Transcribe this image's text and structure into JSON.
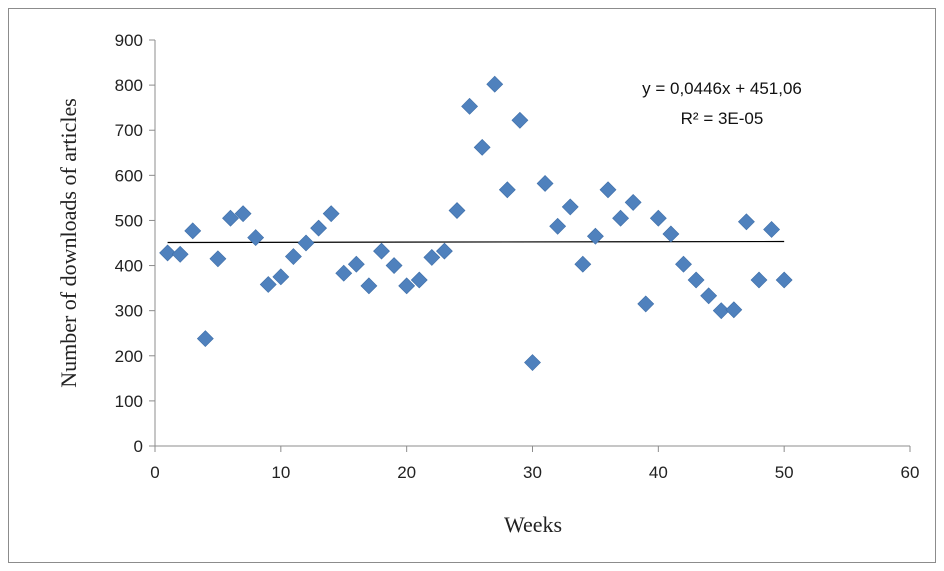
{
  "chart_data": {
    "type": "scatter",
    "xlabel": "Weeks",
    "ylabel": "Number of downloads of articles",
    "xlim": [
      0,
      60
    ],
    "ylim": [
      0,
      900
    ],
    "x_ticks": [
      0,
      10,
      20,
      30,
      40,
      50,
      60
    ],
    "y_ticks": [
      0,
      100,
      200,
      300,
      400,
      500,
      600,
      700,
      800,
      900
    ],
    "x_tick_labels": [
      "0",
      "10",
      "20",
      "30",
      "40",
      "50",
      "60"
    ],
    "y_tick_labels": [
      "0",
      "100",
      "200",
      "300",
      "400",
      "500",
      "600",
      "700",
      "800",
      "900"
    ],
    "grid": false,
    "legend": "none",
    "marker": "diamond",
    "marker_color": "#4f81bd",
    "series": [
      {
        "x": [
          1,
          2,
          3,
          4,
          5,
          6,
          7,
          8,
          9,
          10,
          11,
          12,
          13,
          14,
          15,
          16,
          17,
          18,
          19,
          20,
          21,
          22,
          23,
          24,
          25,
          26,
          27,
          28,
          29,
          30,
          31,
          32,
          33,
          34,
          35,
          36,
          37,
          38,
          39,
          40,
          41,
          42,
          43,
          44,
          45,
          46,
          47,
          48,
          49,
          50
        ],
        "y": [
          428,
          425,
          477,
          238,
          415,
          505,
          515,
          462,
          358,
          375,
          420,
          450,
          483,
          515,
          383,
          403,
          355,
          432,
          400,
          355,
          368,
          418,
          432,
          522,
          753,
          662,
          802,
          568,
          722,
          185,
          582,
          487,
          530,
          403,
          465,
          568,
          505,
          540,
          315,
          505,
          470,
          403,
          368,
          333,
          300,
          302,
          497,
          368,
          480,
          368
        ]
      }
    ],
    "trendline": {
      "type": "linear",
      "slope": 0.0446,
      "intercept": 451.06,
      "x_range": [
        1,
        50
      ],
      "color": "#000000"
    },
    "annotations": [
      "y = 0,0446x + 451,06",
      "R² = 3E-05"
    ]
  }
}
